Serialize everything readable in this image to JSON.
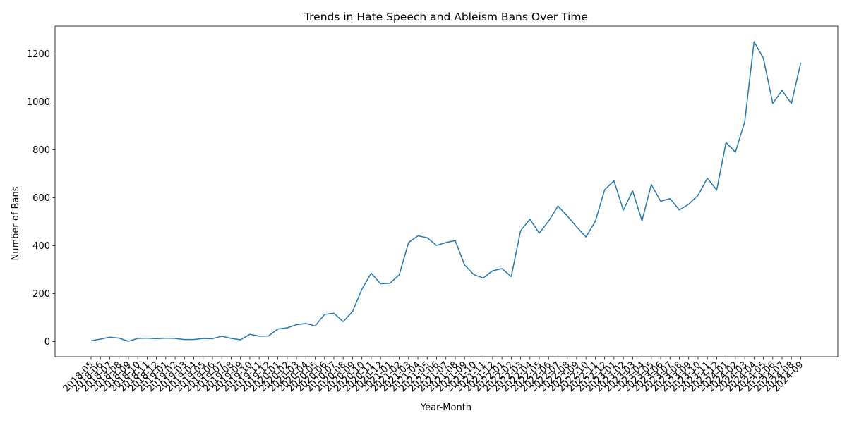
{
  "chart_data": {
    "type": "line",
    "title": "Trends in Hate Speech and Ableism Bans Over Time",
    "xlabel": "Year-Month",
    "ylabel": "Number of Bans",
    "ylim": [
      -50,
      1310
    ],
    "yticks": [
      0,
      200,
      400,
      600,
      800,
      1000,
      1200
    ],
    "grid": false,
    "line_color": "#1f77b4",
    "categories": [
      "2018-05",
      "2018-06",
      "2018-07",
      "2018-08",
      "2018-09",
      "2018-10",
      "2018-11",
      "2018-12",
      "2019-01",
      "2019-02",
      "2019-03",
      "2019-04",
      "2019-05",
      "2019-06",
      "2019-07",
      "2019-08",
      "2019-09",
      "2019-10",
      "2019-11",
      "2019-12",
      "2020-01",
      "2020-02",
      "2020-03",
      "2020-04",
      "2020-05",
      "2020-06",
      "2020-07",
      "2020-08",
      "2020-09",
      "2020-10",
      "2020-11",
      "2020-12",
      "2021-01",
      "2021-02",
      "2021-03",
      "2021-04",
      "2021-05",
      "2021-06",
      "2021-07",
      "2021-08",
      "2021-09",
      "2021-10",
      "2021-11",
      "2021-12",
      "2022-01",
      "2022-02",
      "2022-03",
      "2022-04",
      "2022-05",
      "2022-06",
      "2022-07",
      "2022-08",
      "2022-09",
      "2022-10",
      "2022-11",
      "2022-12",
      "2023-01",
      "2023-02",
      "2023-03",
      "2023-04",
      "2023-05",
      "2023-06",
      "2023-07",
      "2023-08",
      "2023-09",
      "2023-10",
      "2023-11",
      "2023-12",
      "2024-01",
      "2024-02",
      "2024-03",
      "2024-04",
      "2024-05",
      "2024-06",
      "2024-07",
      "2024-08",
      "2024-09"
    ],
    "series": [
      {
        "values": [
          3,
          10,
          18,
          14,
          1,
          13,
          14,
          12,
          14,
          13,
          8,
          8,
          13,
          12,
          22,
          13,
          7,
          30,
          22,
          23,
          52,
          57,
          70,
          75,
          65,
          113,
          118,
          83,
          125,
          218,
          285,
          241,
          243,
          278,
          413,
          441,
          433,
          401,
          413,
          421,
          319,
          279,
          265,
          295,
          304,
          271,
          462,
          510,
          452,
          502,
          565,
          524,
          478,
          436,
          501,
          633,
          670,
          548,
          628,
          504,
          655,
          585,
          596,
          549,
          573,
          610,
          681,
          632,
          830,
          790,
          916,
          1251,
          1182,
          994,
          1047,
          993,
          1163
        ]
      }
    ]
  }
}
